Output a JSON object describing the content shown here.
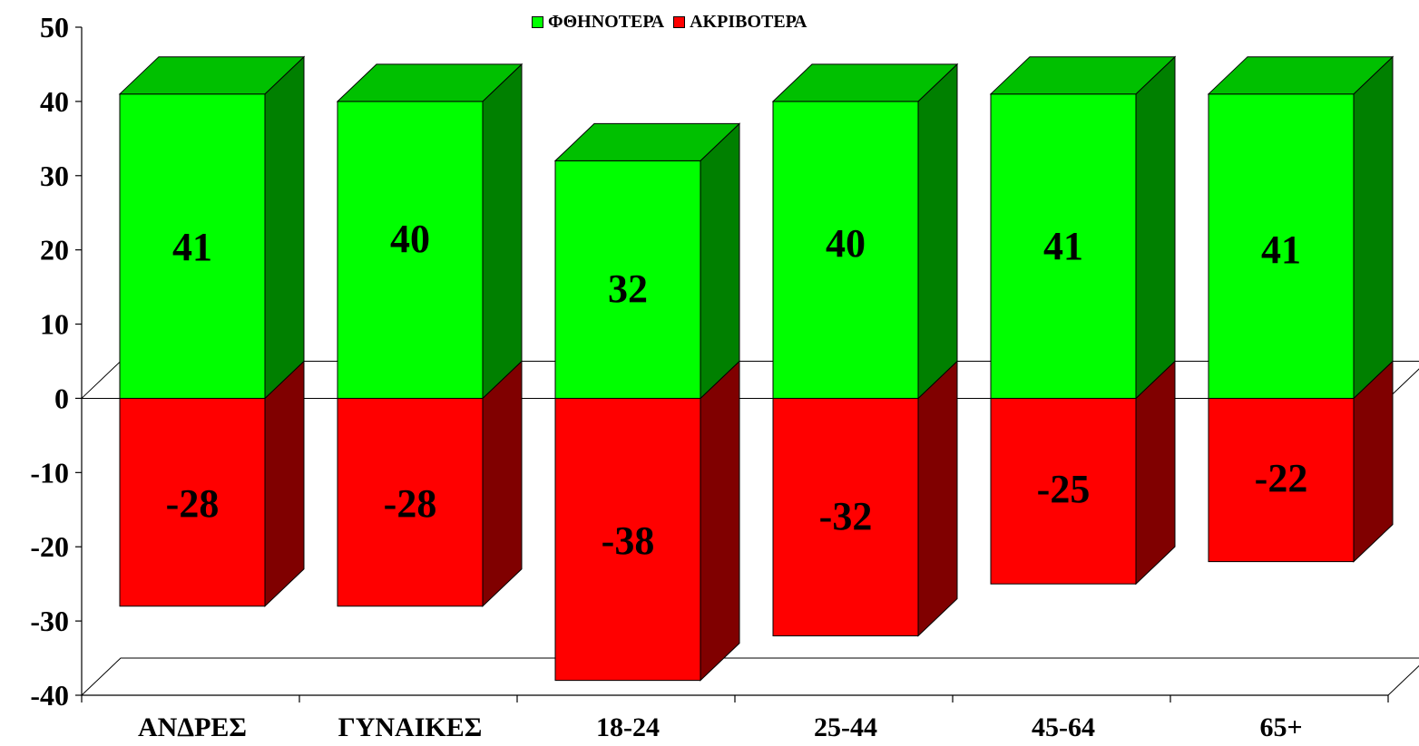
{
  "chart_data": {
    "type": "bar",
    "stacked": true,
    "three_d": true,
    "categories": [
      "ΑΝΔΡΕΣ",
      "ΓΥΝΑΙΚΕΣ",
      "18-24",
      "25-44",
      "45-64",
      "65+"
    ],
    "series": [
      {
        "name": "ΦΘΗΝΟΤΕΡΑ",
        "values": [
          41,
          40,
          32,
          40,
          41,
          41
        ],
        "color": "#00ff00",
        "side_color": "#008000",
        "top_color": "#00c000"
      },
      {
        "name": "ΑΚΡΙΒΟΤΕΡΑ",
        "values": [
          -28,
          -28,
          -38,
          -32,
          -25,
          -22
        ],
        "color": "#ff0000",
        "side_color": "#800000",
        "top_color": "#c00000"
      }
    ],
    "ylim": [
      -40,
      50
    ],
    "yticks": [
      50,
      40,
      30,
      20,
      10,
      0,
      -10,
      -20,
      -30,
      -40
    ],
    "grid": false,
    "legend_position": "top-center",
    "title": "",
    "xlabel": "",
    "ylabel": ""
  }
}
